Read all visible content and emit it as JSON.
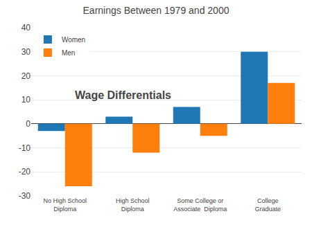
{
  "chart_data": {
    "type": "bar",
    "title": "Earnings Between 1979 and 2000",
    "categories": [
      "No High School\nDiploma",
      "High School\nDiploma",
      "Some College or\nAssociate  Diploma",
      "College\nGraduate"
    ],
    "series": [
      {
        "name": "Women",
        "values": [
          -3,
          3,
          7,
          30
        ]
      },
      {
        "name": "Men",
        "values": [
          -26,
          -12,
          -5,
          17
        ]
      }
    ],
    "ylim": [
      -30,
      40
    ],
    "yticks": [
      -30,
      -20,
      -10,
      0,
      10,
      20,
      30,
      40
    ],
    "grid": true,
    "legend": "upper left",
    "annotations": [
      {
        "text": "Wage Differentials"
      }
    ]
  }
}
